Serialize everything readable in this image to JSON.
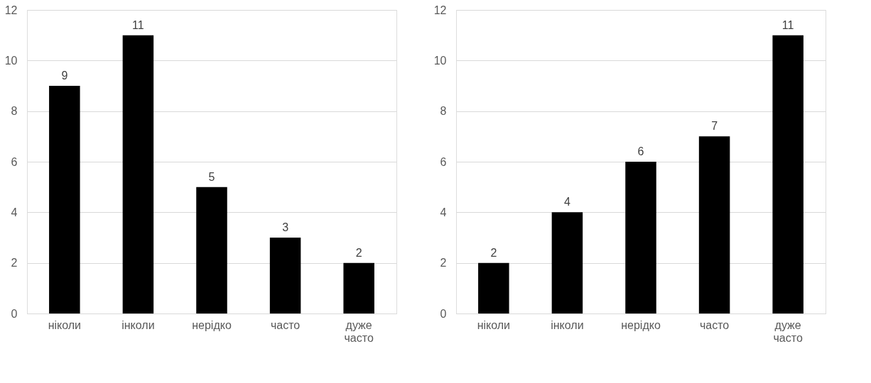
{
  "chart_data": [
    {
      "type": "bar",
      "categories": [
        "ніколи",
        "інколи",
        "нерідко",
        "часто",
        "дуже часто"
      ],
      "values": [
        9,
        11,
        5,
        3,
        2
      ],
      "color": "#000000",
      "ylim": [
        0,
        12
      ],
      "yticks": [
        0,
        2,
        4,
        6,
        8,
        10,
        12
      ],
      "grid": "y",
      "data_labels": true
    },
    {
      "type": "bar",
      "categories": [
        "ніколи",
        "інколи",
        "нерідко",
        "часто",
        "дуже часто"
      ],
      "values": [
        2,
        4,
        6,
        7,
        11
      ],
      "color": "#000000",
      "ylim": [
        0,
        12
      ],
      "yticks": [
        0,
        2,
        4,
        6,
        8,
        10,
        12
      ],
      "grid": "y",
      "data_labels": true
    }
  ]
}
